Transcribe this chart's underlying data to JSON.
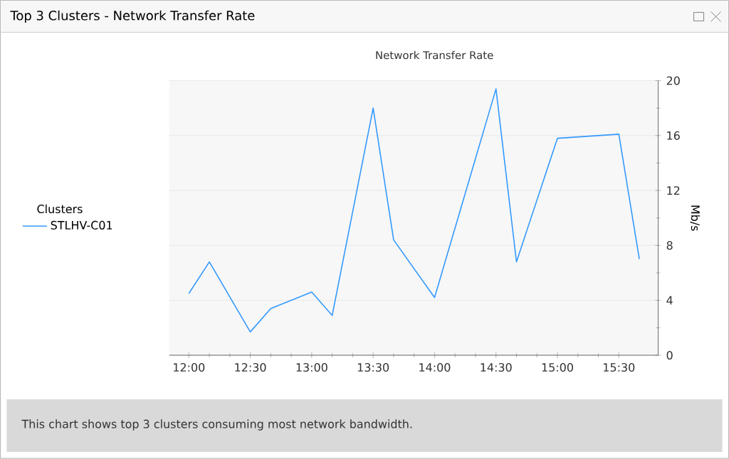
{
  "chart_data": {
    "type": "line",
    "title": "Top 3 Clusters - Network Transfer Rate",
    "subtitle": "Network Transfer Rate",
    "ylabel": "Mb/s",
    "annotations": [
      "This chart shows top 3 clusters consuming most network bandwidth."
    ],
    "legend_title": "Clusters",
    "legend": "left",
    "grid": "y",
    "marker": "none",
    "line_style": "solid",
    "x": [
      12,
      12.1667,
      12.5,
      12.6667,
      13,
      13.1667,
      13.5,
      13.6667,
      14,
      14.5,
      14.6667,
      15,
      15.5,
      15.6667
    ],
    "series": [
      {
        "name": "STLHV-C01",
        "color": "#3399ff",
        "values": [
          4.5,
          6.8,
          1.7,
          3.4,
          4.6,
          2.9,
          18,
          8.4,
          4.2,
          19.4,
          6.8,
          15.8,
          16.1,
          7.0
        ]
      }
    ],
    "xlim": [
      11.84,
      15.82
    ],
    "xticks": [
      {
        "value": 12,
        "label": "12:00"
      },
      {
        "value": 12.5,
        "label": "12:30"
      },
      {
        "value": 13,
        "label": "13:00"
      },
      {
        "value": 13.5,
        "label": "13:30"
      },
      {
        "value": 14,
        "label": "14:00"
      },
      {
        "value": 14.5,
        "label": "14:30"
      },
      {
        "value": 15,
        "label": "15:00"
      },
      {
        "value": 15.5,
        "label": "15:30"
      }
    ],
    "ylim": [
      0,
      20
    ],
    "yticks": [
      0,
      4,
      8,
      12,
      16,
      20
    ]
  }
}
